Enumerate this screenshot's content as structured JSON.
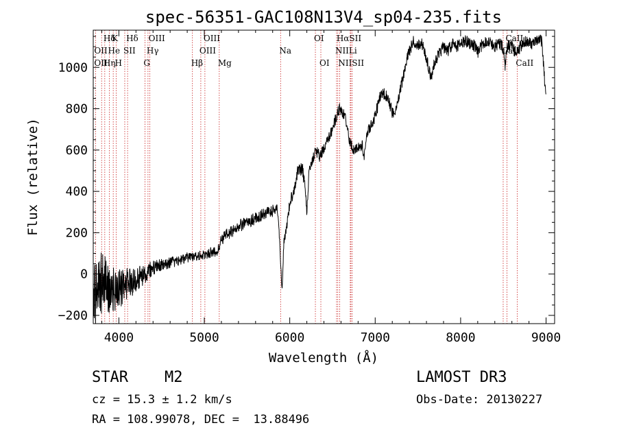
{
  "chart_data": {
    "type": "line",
    "title": "spec-56351-GAC108N13V4_sp04-235.fits",
    "xlabel": "Wavelength (Å)",
    "ylabel": "Flux (relative)",
    "xlim": [
      3700,
      9100
    ],
    "ylim": [
      -240,
      1180
    ],
    "xticks": [
      4000,
      5000,
      6000,
      7000,
      8000,
      9000
    ],
    "yticks": [
      -200,
      0,
      200,
      400,
      600,
      800,
      1000
    ],
    "x_tick_labels": [
      "4000",
      "5000",
      "6000",
      "7000",
      "8000",
      "9000"
    ],
    "y_tick_labels": [
      "−200",
      "0",
      "200",
      "400",
      "600",
      "800",
      "1000"
    ],
    "series": [
      {
        "name": "spectrum",
        "noise_samples": [
          [
            3700,
            -120,
            190
          ],
          [
            3750,
            -60,
            170
          ],
          [
            3800,
            -40,
            150
          ],
          [
            3850,
            -50,
            140
          ],
          [
            3900,
            -70,
            120
          ],
          [
            3950,
            -80,
            110
          ],
          [
            4000,
            -70,
            100
          ],
          [
            4050,
            -60,
            90
          ],
          [
            4100,
            -50,
            80
          ],
          [
            4150,
            -45,
            70
          ],
          [
            4200,
            -30,
            60
          ],
          [
            4250,
            -10,
            55
          ],
          [
            4300,
            0,
            50
          ],
          [
            4350,
            10,
            45
          ],
          [
            4400,
            30,
            40
          ],
          [
            4450,
            40,
            35
          ],
          [
            4500,
            45,
            30
          ],
          [
            4600,
            55,
            28
          ],
          [
            4700,
            65,
            25
          ],
          [
            4800,
            80,
            25
          ],
          [
            4900,
            90,
            25
          ],
          [
            5000,
            90,
            25
          ],
          [
            5100,
            110,
            25
          ],
          [
            5150,
            100,
            25
          ],
          [
            5200,
            170,
            30
          ],
          [
            5300,
            200,
            30
          ],
          [
            5400,
            230,
            30
          ],
          [
            5500,
            250,
            30
          ],
          [
            5600,
            270,
            30
          ],
          [
            5700,
            290,
            30
          ],
          [
            5800,
            305,
            30
          ],
          [
            5850,
            320,
            20
          ],
          [
            5870,
            250,
            15
          ],
          [
            5900,
            0,
            20
          ],
          [
            5910,
            -80,
            10
          ],
          [
            5930,
            150,
            20
          ],
          [
            5970,
            250,
            30
          ],
          [
            6000,
            340,
            30
          ],
          [
            6050,
            410,
            30
          ],
          [
            6100,
            510,
            30
          ],
          [
            6150,
            500,
            40
          ],
          [
            6180,
            420,
            20
          ],
          [
            6200,
            300,
            20
          ],
          [
            6230,
            520,
            30
          ],
          [
            6260,
            540,
            30
          ],
          [
            6300,
            600,
            30
          ],
          [
            6350,
            570,
            30
          ],
          [
            6400,
            600,
            30
          ],
          [
            6450,
            650,
            30
          ],
          [
            6500,
            700,
            30
          ],
          [
            6550,
            770,
            30
          ],
          [
            6580,
            800,
            25
          ],
          [
            6620,
            780,
            25
          ],
          [
            6650,
            760,
            25
          ],
          [
            6680,
            700,
            25
          ],
          [
            6700,
            640,
            25
          ],
          [
            6750,
            600,
            25
          ],
          [
            6800,
            610,
            25
          ],
          [
            6850,
            620,
            25
          ],
          [
            6870,
            560,
            20
          ],
          [
            6900,
            680,
            25
          ],
          [
            6950,
            720,
            25
          ],
          [
            7000,
            760,
            30
          ],
          [
            7050,
            850,
            30
          ],
          [
            7100,
            870,
            30
          ],
          [
            7150,
            860,
            30
          ],
          [
            7200,
            780,
            30
          ],
          [
            7250,
            800,
            30
          ],
          [
            7300,
            900,
            30
          ],
          [
            7350,
            1000,
            30
          ],
          [
            7400,
            1080,
            30
          ],
          [
            7450,
            1130,
            30
          ],
          [
            7500,
            1110,
            30
          ],
          [
            7550,
            1110,
            30
          ],
          [
            7600,
            1050,
            30
          ],
          [
            7650,
            950,
            30
          ],
          [
            7700,
            1030,
            30
          ],
          [
            7750,
            1070,
            30
          ],
          [
            7800,
            1100,
            30
          ],
          [
            7850,
            1080,
            30
          ],
          [
            7900,
            1110,
            30
          ],
          [
            7950,
            1100,
            30
          ],
          [
            8000,
            1110,
            30
          ],
          [
            8050,
            1130,
            30
          ],
          [
            8100,
            1120,
            30
          ],
          [
            8150,
            1110,
            30
          ],
          [
            8200,
            1070,
            30
          ],
          [
            8250,
            1110,
            30
          ],
          [
            8300,
            1130,
            30
          ],
          [
            8350,
            1120,
            30
          ],
          [
            8400,
            1100,
            30
          ],
          [
            8450,
            1120,
            30
          ],
          [
            8500,
            1090,
            30
          ],
          [
            8520,
            1000,
            30
          ],
          [
            8550,
            1110,
            30
          ],
          [
            8600,
            1100,
            30
          ],
          [
            8650,
            1070,
            30
          ],
          [
            8700,
            1100,
            30
          ],
          [
            8750,
            1120,
            30
          ],
          [
            8800,
            1130,
            30
          ],
          [
            8850,
            1110,
            30
          ],
          [
            8900,
            1130,
            30
          ],
          [
            8950,
            1130,
            30
          ],
          [
            9000,
            850,
            40
          ]
        ]
      }
    ],
    "spectral_lines": [
      {
        "label": "Hδ",
        "x": 3835,
        "row": 0
      },
      {
        "label": "K",
        "x": 3934,
        "row": 0
      },
      {
        "label": "Hδ",
        "x": 4102,
        "row": 0
      },
      {
        "label": "OIII",
        "x": 4363,
        "row": 0
      },
      {
        "label": "OIII",
        "x": 5007,
        "row": 0
      },
      {
        "label": "OI",
        "x": 6300,
        "row": 0
      },
      {
        "label": "HαSII",
        "x": 6563,
        "row": 0
      },
      {
        "label": "CaII",
        "x": 8542,
        "row": 0
      },
      {
        "label": "OII",
        "x": 3727,
        "row": 1
      },
      {
        "label": "He",
        "x": 3889,
        "row": 1
      },
      {
        "label": "SII",
        "x": 4069,
        "row": 1
      },
      {
        "label": "Hγ",
        "x": 4341,
        "row": 1
      },
      {
        "label": "OIII",
        "x": 4959,
        "row": 1
      },
      {
        "label": "Na",
        "x": 5893,
        "row": 1
      },
      {
        "label": "NII",
        "x": 6548,
        "row": 1
      },
      {
        "label": "Li",
        "x": 6708,
        "row": 1
      },
      {
        "label": "CaII",
        "x": 8498,
        "row": 1
      },
      {
        "label": "OII",
        "x": 3727,
        "row": 2
      },
      {
        "label": "Hη",
        "x": 3835,
        "row": 2
      },
      {
        "label": "H",
        "x": 3969,
        "row": 2
      },
      {
        "label": "G",
        "x": 4305,
        "row": 2
      },
      {
        "label": "Hβ",
        "x": 4861,
        "row": 2
      },
      {
        "label": "Mg",
        "x": 5175,
        "row": 2
      },
      {
        "label": "OI",
        "x": 6364,
        "row": 2
      },
      {
        "label": "NIISII",
        "x": 6584,
        "row": 2
      },
      {
        "label": "CaII",
        "x": 8662,
        "row": 2
      }
    ],
    "line_positions": [
      3727,
      3798,
      3835,
      3889,
      3934,
      3969,
      4069,
      4102,
      4305,
      4341,
      4363,
      4861,
      4959,
      5007,
      5175,
      5893,
      6300,
      6364,
      6548,
      6563,
      6584,
      6708,
      6716,
      6731,
      8498,
      8542,
      8662
    ]
  },
  "info": {
    "object_class": "STAR",
    "subclass": "M2",
    "survey": "LAMOST DR3",
    "redshift_text": "cz = 15.3 ± 1.2 km/s",
    "obs_date_text": "Obs-Date: 20130227",
    "coords_text": "RA = 108.99078, DEC =  13.88496"
  },
  "colors": {
    "line": "#000000",
    "marker": "#c81e1e"
  }
}
